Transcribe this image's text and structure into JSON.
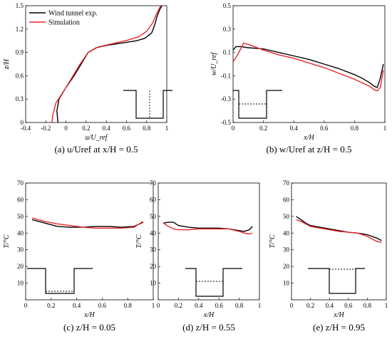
{
  "chart_data": [
    {
      "type": "line",
      "caption": "(a) u/Uref at x/H = 0.5",
      "xlabel": "u/U_ref",
      "ylabel": "z/H",
      "xlim": [
        -0.4,
        1.0
      ],
      "ylim": [
        0,
        1.5
      ],
      "xticks": [
        "-0.4",
        "-0.2",
        "0",
        "0.2",
        "0.4",
        "0.6",
        "0.8",
        "1"
      ],
      "yticks": [
        "0",
        "0.3",
        "0.6",
        "0.9",
        "1.2",
        "1.5"
      ],
      "legend": [
        "Wind tunnel exp.",
        "Simulation"
      ],
      "legend_position": "top-left",
      "inset": "street canyon, vertical dotted line at x/H = 0.5",
      "series": [
        {
          "name": "Wind tunnel exp.",
          "color": "#000000",
          "x": [
            -0.08,
            -0.09,
            -0.07,
            0.0,
            0.08,
            0.15,
            0.22,
            0.3,
            0.4,
            0.5,
            0.6,
            0.7,
            0.78,
            0.85,
            0.88,
            0.9,
            0.93,
            0.95
          ],
          "y": [
            0.0,
            0.15,
            0.3,
            0.45,
            0.6,
            0.75,
            0.9,
            0.96,
            0.99,
            1.01,
            1.03,
            1.05,
            1.08,
            1.15,
            1.25,
            1.35,
            1.45,
            1.5
          ]
        },
        {
          "name": "Simulation",
          "color": "#e8262b",
          "x": [
            -0.14,
            -0.13,
            -0.1,
            0.0,
            0.07,
            0.14,
            0.22,
            0.32,
            0.42,
            0.52,
            0.62,
            0.72,
            0.8,
            0.86,
            0.9,
            0.94
          ],
          "y": [
            0.0,
            0.1,
            0.25,
            0.45,
            0.6,
            0.75,
            0.9,
            0.97,
            1.0,
            1.03,
            1.06,
            1.1,
            1.17,
            1.28,
            1.4,
            1.5
          ]
        }
      ]
    },
    {
      "type": "line",
      "caption": "(b) w/Uref at z/H = 0.5",
      "xlabel": "x/H",
      "ylabel": "w/U_ref",
      "xlim": [
        0,
        1.0
      ],
      "ylim": [
        -0.5,
        0.5
      ],
      "xticks": [
        "0",
        "0.2",
        "0.4",
        "0.6",
        "0.8",
        "1"
      ],
      "yticks": [
        "-0.5",
        "-0.3",
        "-0.1",
        "0.1",
        "0.3",
        "0.5"
      ],
      "inset": "street canyon, horizontal dotted line at z/H = 0.5",
      "series": [
        {
          "name": "Wind tunnel exp.",
          "color": "#000000",
          "x": [
            0.0,
            0.02,
            0.05,
            0.1,
            0.2,
            0.3,
            0.4,
            0.5,
            0.6,
            0.7,
            0.8,
            0.85,
            0.9,
            0.93,
            0.95,
            0.97,
            0.99
          ],
          "y": [
            0.12,
            0.15,
            0.15,
            0.14,
            0.13,
            0.1,
            0.07,
            0.04,
            0.0,
            -0.04,
            -0.09,
            -0.12,
            -0.16,
            -0.19,
            -0.2,
            -0.12,
            0.0
          ]
        },
        {
          "name": "Simulation",
          "color": "#e8262b",
          "x": [
            0.0,
            0.03,
            0.07,
            0.12,
            0.2,
            0.3,
            0.4,
            0.5,
            0.6,
            0.7,
            0.8,
            0.85,
            0.9,
            0.93,
            0.95,
            0.97,
            0.99
          ],
          "y": [
            0.02,
            0.08,
            0.18,
            0.16,
            0.12,
            0.08,
            0.05,
            0.01,
            -0.03,
            -0.08,
            -0.13,
            -0.16,
            -0.19,
            -0.22,
            -0.23,
            -0.2,
            -0.05
          ]
        }
      ]
    },
    {
      "type": "line",
      "caption": "(c) z/H = 0.05",
      "xlabel": "x/H",
      "ylabel": "T/°C",
      "xlim": [
        0,
        1.0
      ],
      "ylim": [
        0,
        70
      ],
      "xticks": [
        "0",
        "0.2",
        "0.4",
        "0.6",
        "0.8",
        "1"
      ],
      "yticks": [
        "10",
        "20",
        "30",
        "40",
        "50",
        "60",
        "70"
      ],
      "inset": "street canyon, horizontal dotted line at z/H = 0.05",
      "series": [
        {
          "name": "Wind tunnel exp.",
          "color": "#000000",
          "x": [
            0.05,
            0.15,
            0.25,
            0.35,
            0.45,
            0.55,
            0.65,
            0.75,
            0.85,
            0.92
          ],
          "y": [
            48,
            46,
            44,
            43.5,
            43.5,
            44,
            44,
            43.5,
            44,
            46.5
          ]
        },
        {
          "name": "Simulation",
          "color": "#e8262b",
          "x": [
            0.05,
            0.15,
            0.25,
            0.35,
            0.45,
            0.55,
            0.65,
            0.75,
            0.85,
            0.92
          ],
          "y": [
            49,
            47,
            45.5,
            44.5,
            43.5,
            43,
            43,
            43,
            43.5,
            47
          ]
        }
      ]
    },
    {
      "type": "line",
      "caption": "(d) z/H = 0.55",
      "xlabel": "x/H",
      "ylabel": "T/°C",
      "xlim": [
        0,
        1.0
      ],
      "ylim": [
        0,
        70
      ],
      "xticks": [
        "0",
        "0.2",
        "0.4",
        "0.6",
        "0.8",
        "1"
      ],
      "yticks": [
        "10",
        "20",
        "30",
        "40",
        "50",
        "60",
        "70"
      ],
      "inset": "street canyon, horizontal dotted line at z/H = 0.55",
      "series": [
        {
          "name": "Wind tunnel exp.",
          "color": "#000000",
          "x": [
            0.05,
            0.1,
            0.15,
            0.2,
            0.3,
            0.4,
            0.5,
            0.6,
            0.7,
            0.8,
            0.85,
            0.9,
            0.93
          ],
          "y": [
            46,
            46.5,
            46.5,
            44.5,
            43.5,
            43,
            43,
            43,
            42.5,
            41.5,
            41,
            42,
            44
          ]
        },
        {
          "name": "Simulation",
          "color": "#e8262b",
          "x": [
            0.05,
            0.1,
            0.15,
            0.2,
            0.3,
            0.4,
            0.5,
            0.6,
            0.7,
            0.8,
            0.85,
            0.9,
            0.93
          ],
          "y": [
            46,
            44,
            42.5,
            42,
            42,
            42.5,
            42.5,
            42.5,
            42.5,
            41,
            40,
            39.5,
            40
          ]
        }
      ]
    },
    {
      "type": "line",
      "caption": "(e) z/H = 0.95",
      "xlabel": "x/H",
      "ylabel": "T/°C",
      "xlim": [
        0,
        1.0
      ],
      "ylim": [
        0,
        70
      ],
      "xticks": [
        "0",
        "0.2",
        "0.4",
        "0.6",
        "0.8",
        "1"
      ],
      "yticks": [
        "10",
        "20",
        "30",
        "40",
        "50",
        "60",
        "70"
      ],
      "inset": "street canyon, horizontal dotted line at z/H = 0.95",
      "series": [
        {
          "name": "Wind tunnel exp.",
          "color": "#000000",
          "x": [
            0.05,
            0.1,
            0.15,
            0.2,
            0.3,
            0.4,
            0.5,
            0.6,
            0.7,
            0.8,
            0.9,
            0.95
          ],
          "y": [
            50,
            48,
            46,
            44.5,
            43.5,
            42.5,
            41.5,
            40.5,
            40,
            39,
            37,
            35.5
          ]
        },
        {
          "name": "Simulation",
          "color": "#e8262b",
          "x": [
            0.05,
            0.1,
            0.15,
            0.2,
            0.3,
            0.4,
            0.5,
            0.6,
            0.7,
            0.8,
            0.9,
            0.95
          ],
          "y": [
            48,
            47,
            45.5,
            44,
            43,
            42,
            41,
            40.5,
            40,
            38,
            35,
            34.5
          ]
        }
      ]
    }
  ]
}
